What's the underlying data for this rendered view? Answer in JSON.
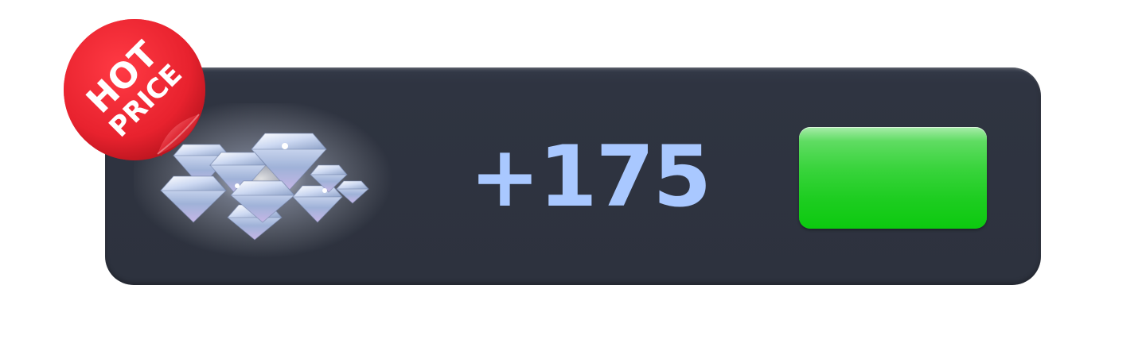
{
  "offer": {
    "amount_label": "+175",
    "item_icon": "diamond-pile-icon",
    "badge": {
      "line1": "HOT",
      "line2": "PRICE",
      "color": "#e8222e"
    },
    "buy_button": {
      "label": "",
      "color": "#1ecd21"
    },
    "amount_color": "#a9c8ff",
    "card_color": "#2f3441"
  }
}
